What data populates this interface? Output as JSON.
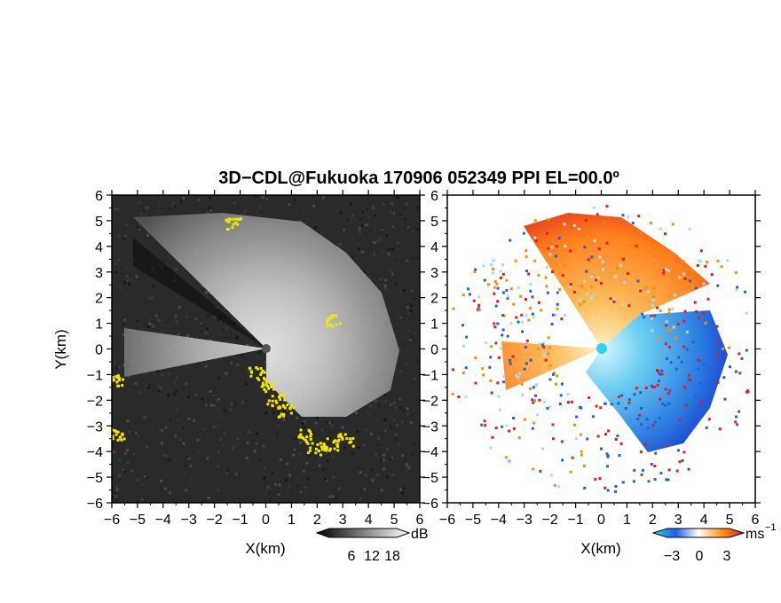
{
  "figure": {
    "title": "3D−CDL@Fukuoka 170906 052349 PPI EL=00.0º"
  },
  "chart_data": [
    {
      "type": "heatmap",
      "panel": "left",
      "quantity": "reflectivity",
      "xlabel": "X(km)",
      "ylabel": "Y(km)",
      "xlim": [
        -6,
        6
      ],
      "ylim": [
        -6,
        6
      ],
      "xticks": [
        -6,
        -5,
        -4,
        -3,
        -2,
        -1,
        0,
        1,
        2,
        3,
        4,
        5,
        6
      ],
      "yticks": [
        -6,
        -5,
        -4,
        -3,
        -2,
        -1,
        0,
        1,
        2,
        3,
        4,
        5,
        6
      ],
      "xtick_labels": [
        "−6",
        "−5",
        "−4",
        "−3",
        "−2",
        "−1",
        "0",
        "1",
        "2",
        "3",
        "4",
        "5",
        "6"
      ],
      "ytick_labels": [
        "−6",
        "−5",
        "−4",
        "−3",
        "−2",
        "−1",
        "0",
        "1",
        "2",
        "3",
        "4",
        "5",
        "6"
      ],
      "colormap": "grayscale",
      "colorbar": {
        "unit": "dB",
        "ticks": [
          6,
          12,
          18
        ]
      },
      "highlight_color": "#f5e600",
      "background_color": "#2a2a2a"
    },
    {
      "type": "heatmap",
      "panel": "right",
      "quantity": "Doppler velocity",
      "xlabel": "X(km)",
      "xlim": [
        -6,
        6
      ],
      "ylim": [
        -6,
        6
      ],
      "xticks": [
        -6,
        -5,
        -4,
        -3,
        -2,
        -1,
        0,
        1,
        2,
        3,
        4,
        5,
        6
      ],
      "yticks": [
        -6,
        -5,
        -4,
        -3,
        -2,
        -1,
        0,
        1,
        2,
        3,
        4,
        5,
        6
      ],
      "xtick_labels": [
        "−6",
        "−5",
        "−4",
        "−3",
        "−2",
        "−1",
        "0",
        "1",
        "2",
        "3",
        "4",
        "5",
        "6"
      ],
      "ytick_labels": [
        "−6",
        "−5",
        "−4",
        "−3",
        "−2",
        "−1",
        "0",
        "1",
        "2",
        "3",
        "4",
        "5",
        "6"
      ],
      "colormap": "blue-white-orange-red diverging",
      "colorbar": {
        "unit": "ms",
        "unit_exponent": "−1",
        "ticks": [
          -3,
          0,
          3
        ],
        "tick_labels": [
          "−3",
          "0",
          "3"
        ]
      },
      "colors": {
        "negative": "#1f5fe0",
        "near_zero": "#9fe0f5",
        "positive": "#ff8c00",
        "strong": "#e81a1a"
      },
      "background_color": "#ffffff"
    }
  ]
}
